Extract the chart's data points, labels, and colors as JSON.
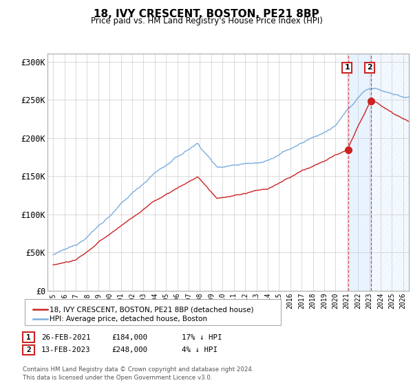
{
  "title": "18, IVY CRESCENT, BOSTON, PE21 8BP",
  "subtitle": "Price paid vs. HM Land Registry's House Price Index (HPI)",
  "hpi_color": "#7aade0",
  "price_color": "#cc2222",
  "shaded_color": "#ddeeff",
  "hatch_color": "#cccccc",
  "annotation_box_color": "#cc2222",
  "legend_line1": "18, IVY CRESCENT, BOSTON, PE21 8BP (detached house)",
  "legend_line2": "HPI: Average price, detached house, Boston",
  "point1_date": "26-FEB-2021",
  "point1_price": "£184,000",
  "point1_hpi": "17% ↓ HPI",
  "point1_x": 2021.12,
  "point1_y": 184000,
  "point2_date": "13-FEB-2023",
  "point2_price": "£248,000",
  "point2_hpi": "4% ↓ HPI",
  "point2_x": 2023.12,
  "point2_y": 248000,
  "footer": "Contains HM Land Registry data © Crown copyright and database right 2024.\nThis data is licensed under the Open Government Licence v3.0.",
  "background_color": "#ffffff",
  "grid_color": "#cccccc",
  "ylim": [
    0,
    310000
  ],
  "yticks": [
    0,
    50000,
    100000,
    150000,
    200000,
    250000,
    300000
  ],
  "ytick_labels": [
    "£0",
    "£50K",
    "£100K",
    "£150K",
    "£200K",
    "£250K",
    "£300K"
  ],
  "xmin": 1994.5,
  "xmax": 2026.5
}
